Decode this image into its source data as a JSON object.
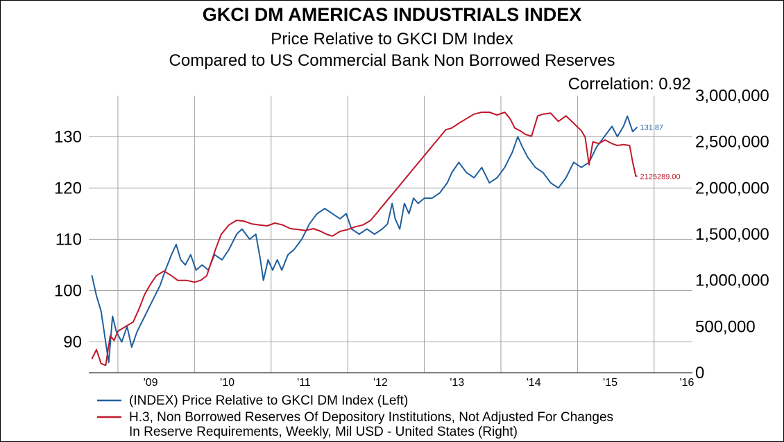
{
  "title": "GKCI DM AMERICAS INDUSTRIALS INDEX",
  "subtitle_1": "Price Relative to GKCI DM Index",
  "subtitle_2": "Compared to US Commercial Bank Non Borrowed Reserves",
  "correlation_text": "Correlation: 0.92",
  "legend": {
    "series_1": "(INDEX) Price Relative to GKCI DM Index  (Left)",
    "series_2_line1": "H.3, Non Borrowed Reserves Of Depository Institutions, Not Adjusted For Changes",
    "series_2_line2": "In Reserve Requirements, Weekly, Mil USD - United States  (Right)"
  },
  "colors": {
    "series_1": "#1f5f9e",
    "series_2": "#c0182b",
    "grid": "#a0a0a0"
  },
  "chart_data": {
    "type": "line",
    "x_tick_labels": [
      "'09",
      "'10",
      "'11",
      "'12",
      "'13",
      "'14",
      "'15",
      "'16"
    ],
    "left_axis": {
      "ticks": [
        90,
        100,
        110,
        120,
        130
      ],
      "ylim": [
        84,
        138
      ]
    },
    "right_axis": {
      "ticks": [
        "0",
        "500,000",
        "1,000,000",
        "1,500,000",
        "2,000,000",
        "2,500,000",
        "3,000,000"
      ],
      "ylim": [
        0,
        3000000
      ]
    },
    "grid": true,
    "legend_position": "bottom",
    "series": [
      {
        "name": "(INDEX) Price Relative to GKCI DM Index  (Left)",
        "axis": "left",
        "end_label": "131.87",
        "points": [
          [
            2008.66,
            103
          ],
          [
            2008.72,
            99
          ],
          [
            2008.78,
            96
          ],
          [
            2008.84,
            90
          ],
          [
            2008.88,
            86
          ],
          [
            2008.93,
            95
          ],
          [
            2008.98,
            92
          ],
          [
            2009.05,
            90
          ],
          [
            2009.12,
            93
          ],
          [
            2009.18,
            89
          ],
          [
            2009.25,
            92
          ],
          [
            2009.35,
            95
          ],
          [
            2009.45,
            98
          ],
          [
            2009.55,
            101
          ],
          [
            2009.62,
            104
          ],
          [
            2009.7,
            107
          ],
          [
            2009.76,
            109
          ],
          [
            2009.82,
            106
          ],
          [
            2009.88,
            105
          ],
          [
            2009.95,
            107
          ],
          [
            2010.02,
            104
          ],
          [
            2010.1,
            105
          ],
          [
            2010.18,
            104
          ],
          [
            2010.26,
            107
          ],
          [
            2010.36,
            106
          ],
          [
            2010.45,
            108
          ],
          [
            2010.55,
            111
          ],
          [
            2010.62,
            112
          ],
          [
            2010.72,
            110
          ],
          [
            2010.8,
            111
          ],
          [
            2010.86,
            106
          ],
          [
            2010.9,
            102
          ],
          [
            2010.96,
            106
          ],
          [
            2011.02,
            104
          ],
          [
            2011.08,
            106
          ],
          [
            2011.14,
            104
          ],
          [
            2011.22,
            107
          ],
          [
            2011.3,
            108
          ],
          [
            2011.4,
            110
          ],
          [
            2011.5,
            113
          ],
          [
            2011.6,
            115
          ],
          [
            2011.7,
            116
          ],
          [
            2011.8,
            115
          ],
          [
            2011.9,
            114
          ],
          [
            2011.98,
            115
          ],
          [
            2012.05,
            112
          ],
          [
            2012.15,
            111
          ],
          [
            2012.25,
            112
          ],
          [
            2012.35,
            111
          ],
          [
            2012.45,
            112
          ],
          [
            2012.52,
            113
          ],
          [
            2012.58,
            117
          ],
          [
            2012.62,
            114
          ],
          [
            2012.68,
            112
          ],
          [
            2012.74,
            117
          ],
          [
            2012.8,
            115
          ],
          [
            2012.86,
            118
          ],
          [
            2012.92,
            117
          ],
          [
            2013.0,
            118
          ],
          [
            2013.1,
            118
          ],
          [
            2013.2,
            119
          ],
          [
            2013.3,
            121
          ],
          [
            2013.36,
            123
          ],
          [
            2013.45,
            125
          ],
          [
            2013.55,
            123
          ],
          [
            2013.65,
            122
          ],
          [
            2013.75,
            124
          ],
          [
            2013.85,
            121
          ],
          [
            2013.95,
            122
          ],
          [
            2014.05,
            124
          ],
          [
            2014.15,
            127
          ],
          [
            2014.22,
            130
          ],
          [
            2014.28,
            128
          ],
          [
            2014.35,
            126
          ],
          [
            2014.45,
            124
          ],
          [
            2014.55,
            123
          ],
          [
            2014.65,
            121
          ],
          [
            2014.75,
            120
          ],
          [
            2014.85,
            122
          ],
          [
            2014.95,
            125
          ],
          [
            2015.05,
            124
          ],
          [
            2015.15,
            125
          ],
          [
            2015.25,
            128
          ],
          [
            2015.35,
            130
          ],
          [
            2015.45,
            132
          ],
          [
            2015.52,
            130
          ],
          [
            2015.6,
            132
          ],
          [
            2015.65,
            134
          ],
          [
            2015.72,
            131
          ],
          [
            2015.78,
            131.87
          ]
        ]
      },
      {
        "name": "H.3, Non Borrowed Reserves Of Depository Institutions, Not Adjusted For Changes In Reserve Requirements, Weekly, Mil USD - United States  (Right)",
        "axis": "right",
        "end_label": "2125289.00",
        "points": [
          [
            2008.66,
            150000
          ],
          [
            2008.72,
            250000
          ],
          [
            2008.78,
            100000
          ],
          [
            2008.84,
            80000
          ],
          [
            2008.9,
            400000
          ],
          [
            2008.95,
            350000
          ],
          [
            2009.0,
            450000
          ],
          [
            2009.1,
            500000
          ],
          [
            2009.2,
            550000
          ],
          [
            2009.28,
            700000
          ],
          [
            2009.35,
            850000
          ],
          [
            2009.42,
            950000
          ],
          [
            2009.5,
            1050000
          ],
          [
            2009.6,
            1100000
          ],
          [
            2009.7,
            1050000
          ],
          [
            2009.78,
            1000000
          ],
          [
            2009.9,
            1000000
          ],
          [
            2010.0,
            980000
          ],
          [
            2010.08,
            1000000
          ],
          [
            2010.16,
            1050000
          ],
          [
            2010.22,
            1200000
          ],
          [
            2010.28,
            1350000
          ],
          [
            2010.35,
            1500000
          ],
          [
            2010.45,
            1600000
          ],
          [
            2010.55,
            1650000
          ],
          [
            2010.65,
            1640000
          ],
          [
            2010.75,
            1610000
          ],
          [
            2010.85,
            1600000
          ],
          [
            2010.95,
            1590000
          ],
          [
            2011.05,
            1620000
          ],
          [
            2011.15,
            1600000
          ],
          [
            2011.25,
            1560000
          ],
          [
            2011.35,
            1550000
          ],
          [
            2011.45,
            1540000
          ],
          [
            2011.55,
            1560000
          ],
          [
            2011.65,
            1530000
          ],
          [
            2011.72,
            1500000
          ],
          [
            2011.8,
            1480000
          ],
          [
            2011.9,
            1530000
          ],
          [
            2012.0,
            1550000
          ],
          [
            2012.1,
            1580000
          ],
          [
            2012.2,
            1600000
          ],
          [
            2012.3,
            1650000
          ],
          [
            2012.4,
            1750000
          ],
          [
            2012.5,
            1850000
          ],
          [
            2012.6,
            1950000
          ],
          [
            2012.7,
            2050000
          ],
          [
            2012.8,
            2150000
          ],
          [
            2012.9,
            2250000
          ],
          [
            2013.0,
            2350000
          ],
          [
            2013.1,
            2450000
          ],
          [
            2013.2,
            2550000
          ],
          [
            2013.28,
            2630000
          ],
          [
            2013.36,
            2650000
          ],
          [
            2013.45,
            2700000
          ],
          [
            2013.55,
            2750000
          ],
          [
            2013.65,
            2800000
          ],
          [
            2013.75,
            2820000
          ],
          [
            2013.85,
            2820000
          ],
          [
            2013.95,
            2790000
          ],
          [
            2014.05,
            2820000
          ],
          [
            2014.12,
            2750000
          ],
          [
            2014.18,
            2650000
          ],
          [
            2014.25,
            2620000
          ],
          [
            2014.32,
            2580000
          ],
          [
            2014.4,
            2560000
          ],
          [
            2014.48,
            2780000
          ],
          [
            2014.55,
            2800000
          ],
          [
            2014.65,
            2810000
          ],
          [
            2014.75,
            2720000
          ],
          [
            2014.85,
            2780000
          ],
          [
            2014.95,
            2700000
          ],
          [
            2015.05,
            2620000
          ],
          [
            2015.1,
            2550000
          ],
          [
            2015.15,
            2250000
          ],
          [
            2015.2,
            2500000
          ],
          [
            2015.28,
            2480000
          ],
          [
            2015.36,
            2520000
          ],
          [
            2015.45,
            2480000
          ],
          [
            2015.52,
            2460000
          ],
          [
            2015.6,
            2470000
          ],
          [
            2015.68,
            2460000
          ],
          [
            2015.72,
            2280000
          ],
          [
            2015.76,
            2130000
          ],
          [
            2015.78,
            2125289
          ]
        ]
      }
    ]
  }
}
